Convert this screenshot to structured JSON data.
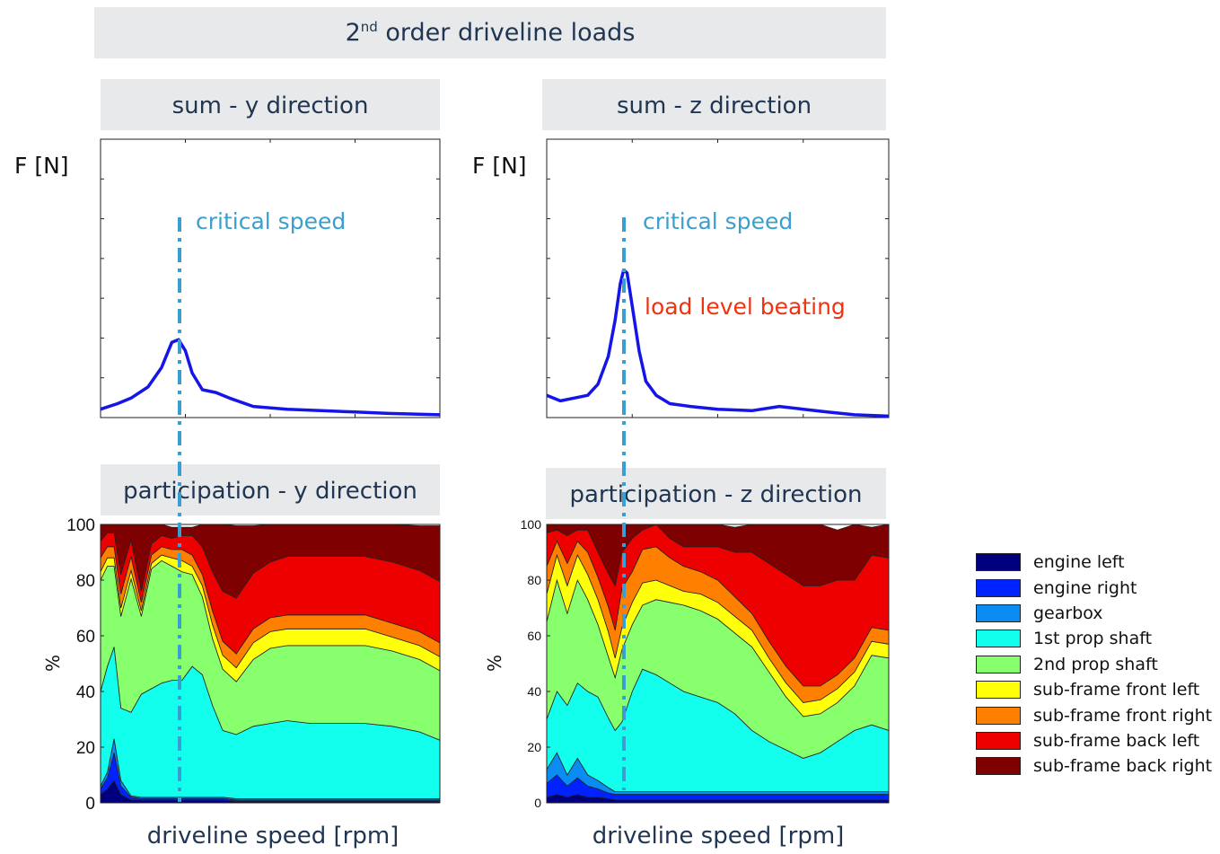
{
  "header": {
    "title_pre": "2",
    "title_sup": "nd",
    "title_post": " order driveline loads"
  },
  "panels": {
    "sum_y_title": "sum - y direction",
    "sum_z_title": "sum - z direction",
    "part_y_title": "participation - y direction",
    "part_z_title": "participation - z direction",
    "f_label": "F [N]",
    "x_label": "driveline speed [rpm]",
    "pct_label": "%",
    "critical_label": "critical speed",
    "beating_label": "load level beating"
  },
  "colors": {
    "line": "#1515e8",
    "critical": "#3a9fd0",
    "beating": "#ee3311",
    "banner_bg": "#e8e9ea",
    "banner_text": "#1f3552"
  },
  "legend": [
    {
      "label": "engine left",
      "color": "#00007f"
    },
    {
      "label": "engine right",
      "color": "#0022ff"
    },
    {
      "label": "gearbox",
      "color": "#0b8cf2"
    },
    {
      "label": "1st prop shaft",
      "color": "#12ffee"
    },
    {
      "label": "2nd prop shaft",
      "color": "#88ff6c"
    },
    {
      "label": "sub-frame front left",
      "color": "#ffff0a"
    },
    {
      "label": "sub-frame front right",
      "color": "#ff8000"
    },
    {
      "label": "sub-frame back left",
      "color": "#ee0000"
    },
    {
      "label": "sub-frame back right",
      "color": "#7f0000"
    }
  ],
  "chart_data": [
    {
      "type": "line",
      "name": "sum-y",
      "title": "sum - y direction",
      "ylabel": "F [N]",
      "xlabel": "driveline speed [rpm]",
      "x": [
        0,
        0.05,
        0.09,
        0.14,
        0.18,
        0.21,
        0.23,
        0.25,
        0.27,
        0.3,
        0.34,
        0.38,
        0.45,
        0.55,
        0.65,
        0.75,
        0.85,
        1.0
      ],
      "y": [
        0.03,
        0.05,
        0.07,
        0.11,
        0.18,
        0.27,
        0.28,
        0.24,
        0.16,
        0.1,
        0.09,
        0.07,
        0.04,
        0.03,
        0.025,
        0.02,
        0.015,
        0.01
      ],
      "critical_x": 0.235
    },
    {
      "type": "line",
      "name": "sum-z",
      "title": "sum - z direction",
      "ylabel": "F [N]",
      "xlabel": "driveline speed [rpm]",
      "x": [
        0,
        0.04,
        0.08,
        0.12,
        0.15,
        0.18,
        0.2,
        0.215,
        0.225,
        0.235,
        0.25,
        0.27,
        0.29,
        0.32,
        0.36,
        0.42,
        0.5,
        0.6,
        0.68,
        0.75,
        0.82,
        0.9,
        1.0
      ],
      "y": [
        0.08,
        0.06,
        0.07,
        0.08,
        0.12,
        0.22,
        0.35,
        0.48,
        0.53,
        0.52,
        0.4,
        0.24,
        0.13,
        0.08,
        0.05,
        0.04,
        0.03,
        0.025,
        0.04,
        0.03,
        0.02,
        0.01,
        0.005
      ],
      "critical_x": 0.225
    },
    {
      "type": "area",
      "name": "participation-y",
      "title": "participation - y direction",
      "ylabel": "%",
      "xlabel": "driveline speed [rpm]",
      "ylim": [
        0,
        100
      ],
      "yticks": [
        0,
        20,
        40,
        60,
        80,
        100
      ],
      "x": [
        0,
        0.02,
        0.04,
        0.06,
        0.09,
        0.12,
        0.15,
        0.18,
        0.21,
        0.24,
        0.27,
        0.3,
        0.33,
        0.36,
        0.4,
        0.45,
        0.5,
        0.55,
        0.62,
        0.7,
        0.78,
        0.86,
        0.94,
        1.0
      ],
      "series": [
        {
          "name": "engine left",
          "values": [
            3,
            5,
            8,
            3,
            1,
            1,
            1,
            1,
            1,
            1,
            1,
            1,
            1,
            1,
            0.5,
            0.5,
            0.5,
            0.5,
            0.5,
            0.5,
            0.5,
            0.5,
            0.5,
            0.5
          ]
        },
        {
          "name": "engine right",
          "values": [
            2,
            4,
            10,
            3,
            1,
            0.5,
            0.5,
            0.5,
            0.5,
            0.5,
            0.5,
            0.5,
            0.5,
            0.5,
            0.5,
            0.5,
            0.5,
            0.5,
            0.5,
            0.5,
            0.5,
            0.5,
            0.5,
            0.5
          ]
        },
        {
          "name": "gearbox",
          "values": [
            1,
            2,
            5,
            2,
            0.5,
            0.5,
            0.5,
            0.5,
            0.5,
            0.5,
            0.5,
            0.5,
            0.5,
            0.5,
            0.5,
            0.5,
            0.5,
            0.5,
            0.5,
            0.5,
            0.5,
            0.5,
            0.5,
            0.5
          ]
        },
        {
          "name": "1st prop shaft",
          "values": [
            34,
            38,
            33,
            26,
            30,
            37,
            39,
            41,
            42,
            42,
            47,
            44,
            33,
            24,
            23,
            26,
            27,
            28,
            27,
            27,
            27,
            26,
            24,
            21
          ]
        },
        {
          "name": "2nd prop shaft",
          "values": [
            40,
            36,
            29,
            33,
            48,
            28,
            43,
            44,
            41,
            39,
            33,
            28,
            24,
            22,
            19,
            24,
            27,
            27,
            28,
            28,
            28,
            27,
            26,
            25
          ]
        },
        {
          "name": "sub-frame front left",
          "values": [
            3,
            3,
            3,
            3,
            3,
            2,
            2,
            2,
            3,
            4,
            3,
            4,
            5,
            5,
            5,
            6,
            6,
            6,
            6,
            6,
            6,
            5,
            5,
            5
          ]
        },
        {
          "name": "sub-frame front right",
          "values": [
            5,
            4,
            4,
            5,
            5,
            3,
            3,
            3,
            3,
            4,
            4,
            4,
            5,
            5,
            5,
            5,
            5,
            5,
            5,
            5,
            5,
            5,
            5,
            5
          ]
        },
        {
          "name": "sub-frame back left",
          "values": [
            6,
            5,
            5,
            7,
            6,
            4,
            4,
            4,
            4,
            5,
            7,
            10,
            14,
            18,
            20,
            20,
            20,
            21,
            21,
            21,
            21,
            22,
            22,
            22
          ]
        },
        {
          "name": "sub-frame back right",
          "values": [
            6,
            3,
            3,
            18,
            5.5,
            24,
            7,
            4,
            4,
            3,
            3,
            8,
            17,
            24,
            26,
            17,
            14,
            12,
            12,
            12,
            12,
            14,
            16,
            20
          ]
        }
      ]
    },
    {
      "type": "area",
      "name": "participation-z",
      "title": "participation - z direction",
      "ylabel": "%",
      "xlabel": "driveline speed [rpm]",
      "ylim": [
        0,
        100
      ],
      "yticks": [
        0,
        20,
        40,
        60,
        80,
        100
      ],
      "x": [
        0,
        0.03,
        0.06,
        0.09,
        0.12,
        0.15,
        0.18,
        0.2,
        0.22,
        0.25,
        0.28,
        0.32,
        0.36,
        0.4,
        0.45,
        0.5,
        0.55,
        0.6,
        0.65,
        0.7,
        0.75,
        0.8,
        0.85,
        0.9,
        0.95,
        1.0
      ],
      "series": [
        {
          "name": "engine left",
          "values": [
            2,
            3,
            2,
            3,
            2,
            2,
            1.5,
            1,
            1,
            1,
            1,
            1,
            1,
            1,
            1,
            1,
            1,
            1,
            1,
            1,
            1,
            1,
            1,
            1,
            1,
            1
          ]
        },
        {
          "name": "engine right",
          "values": [
            5,
            7,
            4,
            6,
            4,
            3,
            2,
            2,
            2,
            2,
            2,
            2,
            2,
            2,
            2,
            2,
            2,
            2,
            2,
            2,
            2,
            2,
            2,
            2,
            2,
            2
          ]
        },
        {
          "name": "gearbox",
          "values": [
            5,
            8,
            4,
            7,
            4,
            3,
            2,
            1,
            1,
            1,
            1,
            1,
            1,
            1,
            1,
            1,
            1,
            1,
            1,
            1,
            1,
            1,
            1,
            1,
            1,
            1
          ]
        },
        {
          "name": "1st prop shaft",
          "values": [
            18,
            22,
            25,
            27,
            30,
            30,
            25,
            22,
            25,
            36,
            44,
            42,
            39,
            36,
            34,
            32,
            28,
            22,
            18,
            15,
            12,
            14,
            18,
            22,
            24,
            22
          ]
        },
        {
          "name": "2nd prop shaft",
          "values": [
            35,
            40,
            33,
            37,
            33,
            26,
            22,
            19,
            26,
            24,
            23,
            27,
            29,
            31,
            31,
            30,
            29,
            30,
            25,
            19,
            15,
            14,
            14,
            16,
            25,
            26
          ]
        },
        {
          "name": "sub-frame front left",
          "values": [
            10,
            9,
            10,
            9,
            9,
            9,
            9,
            7,
            8,
            8,
            8,
            7,
            6,
            5,
            6,
            6,
            6,
            6,
            5,
            5,
            5,
            5,
            5,
            5,
            5,
            5
          ]
        },
        {
          "name": "sub-frame front right",
          "values": [
            10,
            5,
            8,
            5,
            8,
            8,
            9,
            10,
            14,
            11,
            12,
            12,
            10,
            9,
            8,
            8,
            7,
            6,
            6,
            6,
            6,
            5,
            5,
            5,
            5,
            5
          ]
        },
        {
          "name": "sub-frame back left",
          "values": [
            12,
            4,
            10,
            4,
            8,
            9,
            12,
            16,
            13,
            12,
            7,
            8,
            7,
            7,
            9,
            12,
            16,
            22,
            28,
            33,
            36,
            36,
            34,
            28,
            26,
            26
          ]
        },
        {
          "name": "sub-frame back right",
          "values": [
            3,
            2,
            4,
            2,
            2,
            10,
            17.5,
            22,
            10,
            5,
            2,
            0,
            5,
            8,
            8,
            8,
            9,
            10,
            14,
            18,
            22,
            22,
            18,
            20,
            10,
            12
          ]
        }
      ]
    }
  ]
}
